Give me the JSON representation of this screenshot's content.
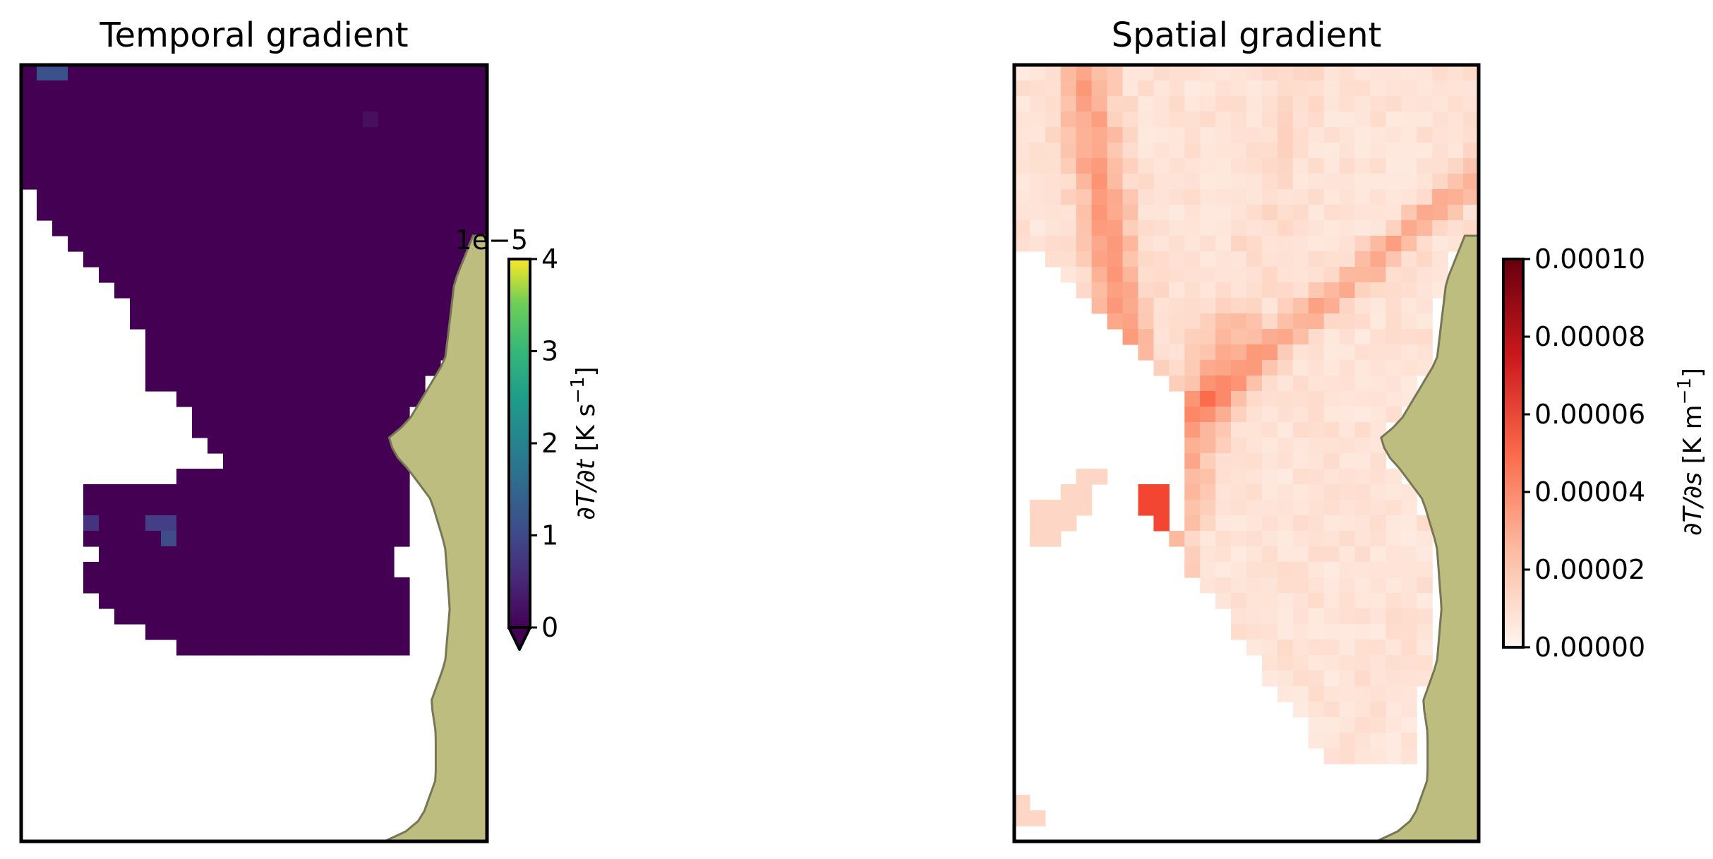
{
  "chart_data": [
    {
      "type": "heatmap",
      "title": "Temporal gradient",
      "colormap": "viridis",
      "grid": false,
      "axes_ticks": false,
      "colorbar": {
        "label_prefix": "∂T/∂t [K s",
        "label_exp": "−1",
        "label_suffix": "]",
        "offset_text": "1e−5",
        "range": [
          0,
          4
        ],
        "ticks": [
          "0",
          "1",
          "2",
          "3",
          "4"
        ],
        "extend": "min",
        "placement": "right"
      },
      "data_summary": "Values near 0 over most of the domain; a few cells around 0.5–1 (×1e−5 K/s) near the top-left corner and at mid-left edge of the masked region.",
      "land_color": "#bdbd80",
      "grid_rows": 50,
      "grid_cols": 30
    },
    {
      "type": "heatmap",
      "title": "Spatial gradient",
      "colormap": "Reds",
      "grid": false,
      "axes_ticks": false,
      "colorbar": {
        "label_prefix": "∂T/∂s [K m",
        "label_exp": "−1",
        "label_suffix": "]",
        "range": [
          0,
          0.0001
        ],
        "ticks": [
          "0.00000",
          "0.00002",
          "0.00004",
          "0.00006",
          "0.00008",
          "0.00010"
        ],
        "extend": "neither",
        "placement": "right"
      },
      "data_summary": "Mostly 0–0.00003 K/m with filament-like bands up to ~0.00006 and a hot spot near 0.00008 left of center.",
      "land_color": "#bdbd80",
      "grid_rows": 50,
      "grid_cols": 30
    }
  ]
}
